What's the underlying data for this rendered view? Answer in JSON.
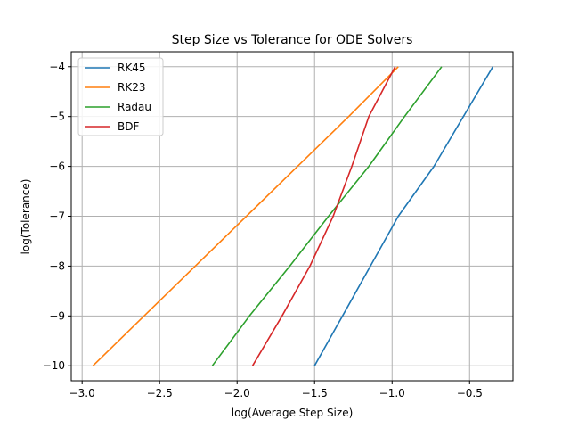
{
  "chart_data": {
    "type": "line",
    "title": "Step Size vs Tolerance for ODE Solvers",
    "xlabel": "log(Average Step Size)",
    "ylabel": "log(Tolerance)",
    "xlim": [
      -3.07,
      -0.22
    ],
    "ylim": [
      -10.3,
      -3.7
    ],
    "xticks": [
      -3.0,
      -2.5,
      -2.0,
      -1.5,
      -1.0,
      -0.5
    ],
    "xtick_labels": [
      "−3.0",
      "−2.5",
      "−2.0",
      "−1.5",
      "−1.0",
      "−0.5"
    ],
    "yticks": [
      -10,
      -9,
      -8,
      -7,
      -6,
      -5,
      -4
    ],
    "ytick_labels": [
      "−10",
      "−9",
      "−8",
      "−7",
      "−6",
      "−5",
      "−4"
    ],
    "grid": true,
    "legend_position": "top-left",
    "series": [
      {
        "name": "RK45",
        "color": "#1f77b4",
        "x": [
          -1.5,
          -1.32,
          -1.14,
          -0.96,
          -0.73,
          -0.54,
          -0.35
        ],
        "y": [
          -10,
          -9,
          -8,
          -7,
          -6,
          -5,
          -4
        ]
      },
      {
        "name": "RK23",
        "color": "#ff7f0e",
        "x": [
          -2.93,
          -2.6,
          -2.27,
          -1.94,
          -1.61,
          -1.28,
          -0.96
        ],
        "y": [
          -10,
          -9,
          -8,
          -7,
          -6,
          -5,
          -4
        ]
      },
      {
        "name": "Radau",
        "color": "#2ca02c",
        "x": [
          -2.16,
          -1.92,
          -1.66,
          -1.41,
          -1.15,
          -0.92,
          -0.68
        ],
        "y": [
          -10,
          -9,
          -8,
          -7,
          -6,
          -5,
          -4
        ]
      },
      {
        "name": "BDF",
        "color": "#d62728",
        "x": [
          -1.9,
          -1.71,
          -1.53,
          -1.38,
          -1.26,
          -1.15,
          -0.98
        ],
        "y": [
          -10,
          -9,
          -8,
          -7,
          -6,
          -5,
          -4
        ]
      }
    ]
  }
}
